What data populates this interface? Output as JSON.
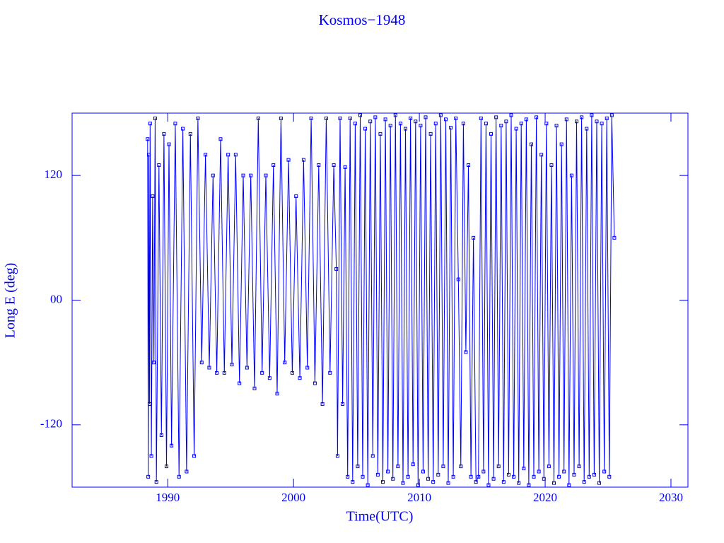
{
  "chart_data": {
    "type": "line",
    "title": "Kosmos−1948",
    "x_label": "Time(UTC)",
    "y_label": "Long E (deg)",
    "xlim": [
      1982.4,
      2031.35
    ],
    "ylim": [
      -180,
      180
    ],
    "xticks": [
      1990,
      2000,
      2010,
      2020,
      2030
    ],
    "yticks": [
      -120,
      {
        "value": 0,
        "label": "00"
      },
      120
    ],
    "color": "#0000ff",
    "x": [
      1988.4,
      1988.45,
      1988.5,
      1988.55,
      1988.6,
      1988.7,
      1988.8,
      1988.9,
      1989.0,
      1989.1,
      1989.3,
      1989.5,
      1989.7,
      1989.9,
      1990.1,
      1990.3,
      1990.6,
      1990.9,
      1991.2,
      1991.5,
      1991.8,
      1992.1,
      1992.4,
      1992.7,
      1993.0,
      1993.3,
      1993.6,
      1993.9,
      1994.2,
      1994.5,
      1994.8,
      1995.1,
      1995.4,
      1995.7,
      1996.0,
      1996.3,
      1996.6,
      1996.9,
      1997.2,
      1997.5,
      1997.8,
      1998.1,
      1998.4,
      1998.7,
      1999.0,
      1999.3,
      1999.6,
      1999.9,
      2000.2,
      2000.5,
      2000.8,
      2001.1,
      2001.4,
      2001.7,
      2002.0,
      2002.3,
      2002.6,
      2002.9,
      2003.2,
      2003.4,
      2003.5,
      2003.7,
      2003.9,
      2004.1,
      2004.3,
      2004.5,
      2004.7,
      2004.9,
      2005.1,
      2005.3,
      2005.5,
      2005.7,
      2005.9,
      2006.1,
      2006.3,
      2006.5,
      2006.7,
      2006.9,
      2007.1,
      2007.3,
      2007.5,
      2007.7,
      2007.9,
      2008.1,
      2008.3,
      2008.5,
      2008.7,
      2008.9,
      2009.1,
      2009.3,
      2009.5,
      2009.7,
      2009.9,
      2010.1,
      2010.3,
      2010.5,
      2010.7,
      2010.9,
      2011.1,
      2011.3,
      2011.5,
      2011.7,
      2011.9,
      2012.1,
      2012.3,
      2012.5,
      2012.7,
      2012.9,
      2013.1,
      2013.3,
      2013.5,
      2013.7,
      2013.9,
      2014.1,
      2014.3,
      2014.5,
      2014.7,
      2014.9,
      2015.1,
      2015.3,
      2015.5,
      2015.7,
      2015.9,
      2016.1,
      2016.3,
      2016.5,
      2016.7,
      2016.9,
      2017.1,
      2017.3,
      2017.5,
      2017.7,
      2017.9,
      2018.1,
      2018.3,
      2018.5,
      2018.7,
      2018.9,
      2019.1,
      2019.3,
      2019.5,
      2019.7,
      2019.9,
      2020.1,
      2020.3,
      2020.5,
      2020.7,
      2020.9,
      2021.1,
      2021.3,
      2021.5,
      2021.7,
      2021.9,
      2022.1,
      2022.3,
      2022.5,
      2022.7,
      2022.9,
      2023.1,
      2023.3,
      2023.5,
      2023.7,
      2023.9,
      2024.1,
      2024.3,
      2024.5,
      2024.7,
      2024.9,
      2025.1,
      2025.3,
      2025.5
    ],
    "values": [
      155,
      -170,
      140,
      -100,
      170,
      -150,
      100,
      -60,
      175,
      -175,
      130,
      -130,
      160,
      -160,
      150,
      -140,
      170,
      -170,
      165,
      -165,
      160,
      -150,
      175,
      -60,
      140,
      -65,
      120,
      -70,
      155,
      -70,
      140,
      -62,
      140,
      -80,
      120,
      -65,
      120,
      -85,
      175,
      -70,
      120,
      -75,
      130,
      -90,
      175,
      -60,
      135,
      -70,
      100,
      -75,
      135,
      -65,
      175,
      -80,
      130,
      -100,
      175,
      -70,
      130,
      30,
      -150,
      175,
      -100,
      128,
      -170,
      175,
      -175,
      170,
      -160,
      178,
      -170,
      165,
      -178,
      172,
      -150,
      176,
      -168,
      160,
      -175,
      174,
      -165,
      168,
      -172,
      178,
      -160,
      170,
      -176,
      165,
      -170,
      175,
      -158,
      172,
      -178,
      168,
      -165,
      176,
      -172,
      160,
      -175,
      170,
      -168,
      178,
      -160,
      174,
      -176,
      166,
      -170,
      175,
      20,
      -160,
      170,
      -50,
      130,
      -170,
      60,
      -175,
      -170,
      175,
      -165,
      170,
      -178,
      160,
      -172,
      176,
      -160,
      168,
      -175,
      172,
      -168,
      178,
      -170,
      165,
      -176,
      170,
      -162,
      174,
      -178,
      150,
      -170,
      176,
      -165,
      140,
      -172,
      170,
      -160,
      130,
      -176,
      168,
      -170,
      150,
      -165,
      174,
      -178,
      120,
      -168,
      172,
      -160,
      176,
      -175,
      165,
      -170,
      178,
      -168,
      172,
      -176,
      170,
      -165,
      175,
      -170,
      178,
      60
    ]
  }
}
